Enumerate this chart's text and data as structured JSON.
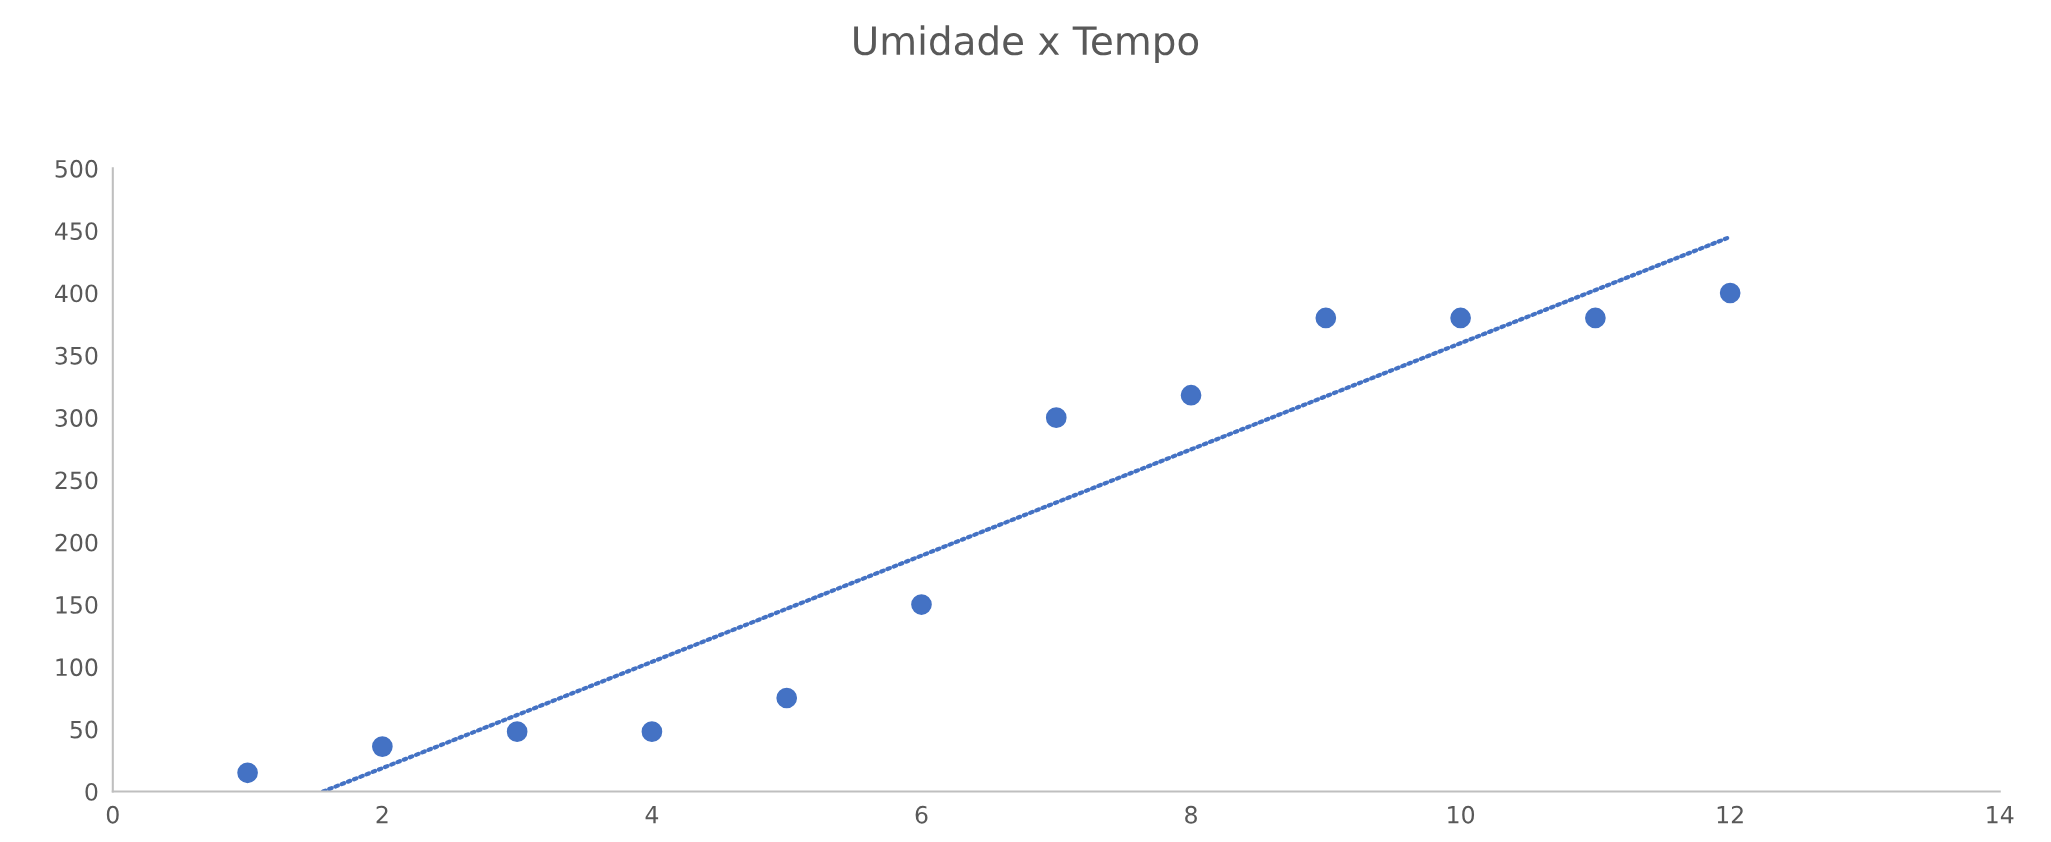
{
  "chart_data": {
    "type": "scatter",
    "title": "Umidade x Tempo",
    "x": [
      1,
      2,
      3,
      4,
      5,
      6,
      7,
      8,
      9,
      10,
      11,
      12
    ],
    "series": [
      {
        "color": "#4472c4",
        "marker": "circle",
        "values": [
          15,
          36,
          48,
          48,
          75,
          150,
          300,
          318,
          380,
          380,
          380,
          400
        ]
      },
      {
        "type": "line",
        "color": "#4472c4",
        "line_style": "dotted",
        "x": [
          1.56,
          12
        ],
        "values": [
          0,
          445
        ]
      }
    ],
    "xlim": [
      0,
      14
    ],
    "xticks": [
      0,
      2,
      4,
      6,
      8,
      10,
      12,
      14
    ],
    "ylim": [
      0,
      500
    ],
    "yticks": [
      0,
      50,
      100,
      150,
      200,
      250,
      300,
      350,
      400,
      450,
      500
    ],
    "grid": false,
    "legend": false
  }
}
